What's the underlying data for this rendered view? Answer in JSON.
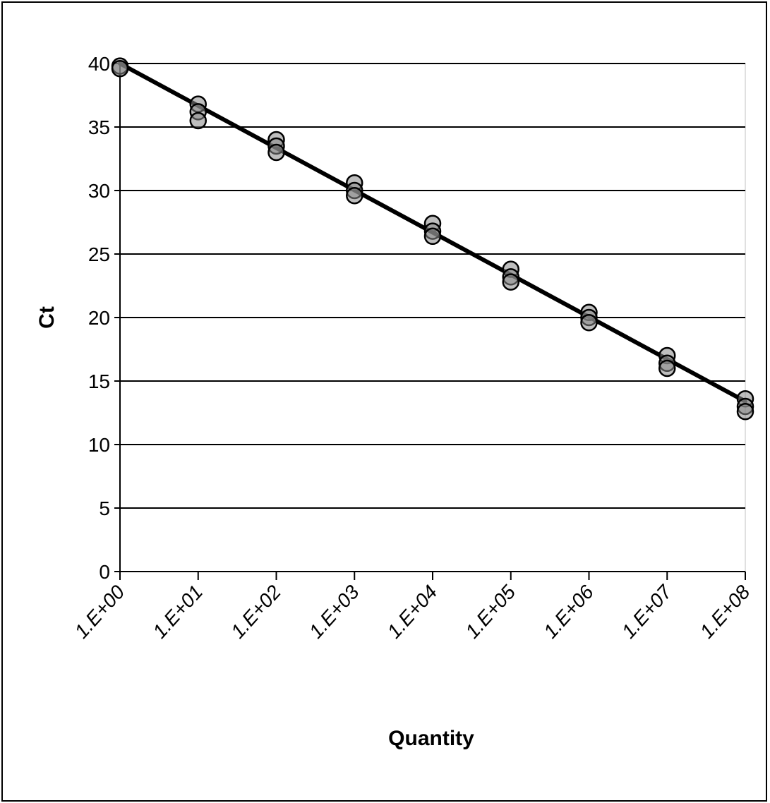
{
  "chart_data": {
    "type": "scatter",
    "title": "",
    "xlabel": "Quantity",
    "ylabel": "Ct",
    "x_scale": "log",
    "x_tick_labels": [
      "1.E+00",
      "1.E+01",
      "1.E+02",
      "1.E+03",
      "1.E+04",
      "1.E+05",
      "1.E+06",
      "1.E+07",
      "1.E+08"
    ],
    "x_ticks": [
      1,
      10,
      100,
      1000,
      10000,
      100000,
      1000000,
      10000000,
      100000000
    ],
    "xlim": [
      1,
      100000000
    ],
    "ylim": [
      0,
      40
    ],
    "y_ticks": [
      0,
      5,
      10,
      15,
      20,
      25,
      30,
      35,
      40
    ],
    "grid": "horizontal",
    "legend": "none",
    "series": [
      {
        "type": "scatter",
        "points": [
          {
            "x": 1,
            "y": 39.8
          },
          {
            "x": 1,
            "y": 39.6
          },
          {
            "x": 10,
            "y": 36.8
          },
          {
            "x": 10,
            "y": 36.2
          },
          {
            "x": 10,
            "y": 35.5
          },
          {
            "x": 100,
            "y": 34.0
          },
          {
            "x": 100,
            "y": 33.5
          },
          {
            "x": 100,
            "y": 33.0
          },
          {
            "x": 1000,
            "y": 30.6
          },
          {
            "x": 1000,
            "y": 30.0
          },
          {
            "x": 1000,
            "y": 29.6
          },
          {
            "x": 10000,
            "y": 27.4
          },
          {
            "x": 10000,
            "y": 26.8
          },
          {
            "x": 10000,
            "y": 26.4
          },
          {
            "x": 100000,
            "y": 23.8
          },
          {
            "x": 100000,
            "y": 23.2
          },
          {
            "x": 100000,
            "y": 22.8
          },
          {
            "x": 1000000,
            "y": 20.4
          },
          {
            "x": 1000000,
            "y": 20.0
          },
          {
            "x": 1000000,
            "y": 19.6
          },
          {
            "x": 10000000,
            "y": 17.0
          },
          {
            "x": 10000000,
            "y": 16.4
          },
          {
            "x": 10000000,
            "y": 16.0
          },
          {
            "x": 100000000,
            "y": 13.6
          },
          {
            "x": 100000000,
            "y": 13.0
          },
          {
            "x": 100000000,
            "y": 12.6
          }
        ]
      },
      {
        "type": "line",
        "points": [
          {
            "x": 1,
            "y": 40.0
          },
          {
            "x": 100000000,
            "y": 13.4
          }
        ]
      }
    ],
    "colors": {
      "marker_stroke": "#000000",
      "marker_fill": "#888888",
      "line": "#000000",
      "grid": "#000000"
    }
  }
}
